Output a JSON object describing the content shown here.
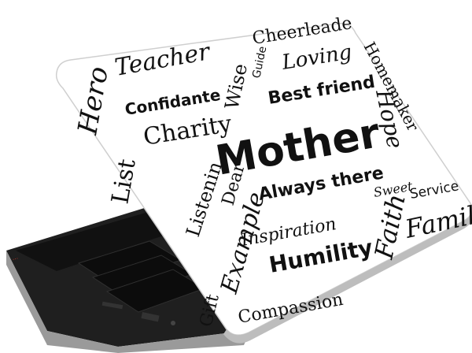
{
  "colors": {
    "skin_background": "#ffffff",
    "word_ink": "#111111",
    "laptop_body": "#2b2b2b",
    "laptop_base_top": "#1a1a1a",
    "laptop_base_edge": "#8a8a8a",
    "brand_red": "#c0392b"
  },
  "scene": {
    "subject": "laptop-with-word-cloud-skin",
    "brand_logo_text": "...",
    "words": {
      "cheerleader": "Cheerleade",
      "teacher": "Teacher",
      "wise": "Wise",
      "guide": "Guide",
      "loving": "Loving",
      "homemaker": "Homemaker",
      "hero": "Hero",
      "confidante": "Confidante",
      "best_friend": "Best friend",
      "charity": "Charity",
      "hope": "Hope",
      "mother": "Mother",
      "listen": "Listenin",
      "dear": "Dear",
      "always_there": "Always there",
      "example": "Example",
      "sweet": "Sweet",
      "service": "Service",
      "inspiration": "Inspiration",
      "faith": "Faith",
      "family": "Family",
      "humility": "Humility",
      "compassion": "Compassion",
      "gift": "Gift",
      "list": "List"
    }
  }
}
